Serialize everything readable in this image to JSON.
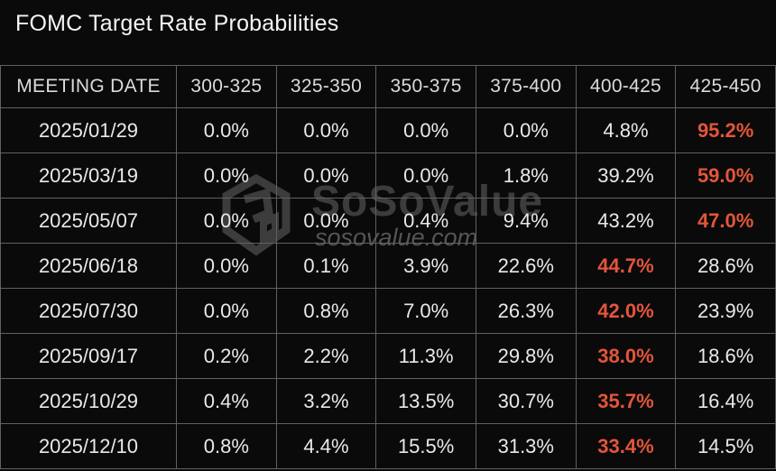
{
  "title": "FOMC Target Rate Probabilities",
  "watermark": {
    "brand": "SoSoValue",
    "site": "sosovalue.com",
    "logo_icon": "sosovalue-cube-logo"
  },
  "colors": {
    "background": "#0A0A0A",
    "grid_line": "#616161",
    "text_header": "#DBDBDB",
    "text_primary": "#E9E9E9",
    "accent_highlight": "#E3553A",
    "watermark": "#3C3C3C",
    "watermark_sub": "#555555"
  },
  "table": {
    "columns": [
      "MEETING DATE",
      "300-325",
      "325-350",
      "350-375",
      "375-400",
      "400-425",
      "425-450"
    ],
    "rows": [
      {
        "date": "2025/01/29",
        "values": [
          "0.0%",
          "0.0%",
          "0.0%",
          "0.0%",
          "4.8%",
          "95.2%"
        ],
        "highlight_index": 5
      },
      {
        "date": "2025/03/19",
        "values": [
          "0.0%",
          "0.0%",
          "0.0%",
          "1.8%",
          "39.2%",
          "59.0%"
        ],
        "highlight_index": 5
      },
      {
        "date": "2025/05/07",
        "values": [
          "0.0%",
          "0.0%",
          "0.4%",
          "9.4%",
          "43.2%",
          "47.0%"
        ],
        "highlight_index": 5
      },
      {
        "date": "2025/06/18",
        "values": [
          "0.0%",
          "0.1%",
          "3.9%",
          "22.6%",
          "44.7%",
          "28.6%"
        ],
        "highlight_index": 4
      },
      {
        "date": "2025/07/30",
        "values": [
          "0.0%",
          "0.8%",
          "7.0%",
          "26.3%",
          "42.0%",
          "23.9%"
        ],
        "highlight_index": 4
      },
      {
        "date": "2025/09/17",
        "values": [
          "0.2%",
          "2.2%",
          "11.3%",
          "29.8%",
          "38.0%",
          "18.6%"
        ],
        "highlight_index": 4
      },
      {
        "date": "2025/10/29",
        "values": [
          "0.4%",
          "3.2%",
          "13.5%",
          "30.7%",
          "35.7%",
          "16.4%"
        ],
        "highlight_index": 4
      },
      {
        "date": "2025/12/10",
        "values": [
          "0.8%",
          "4.4%",
          "15.5%",
          "31.3%",
          "33.4%",
          "14.5%"
        ],
        "highlight_index": 4
      }
    ]
  },
  "chart_data": {
    "type": "table",
    "title": "FOMC Target Rate Probabilities",
    "row_label": "MEETING DATE",
    "columns_rate_bps": [
      "300-325",
      "325-350",
      "350-375",
      "375-400",
      "400-425",
      "425-450"
    ],
    "meetings": [
      "2025/01/29",
      "2025/03/19",
      "2025/05/07",
      "2025/06/18",
      "2025/07/30",
      "2025/09/17",
      "2025/10/29",
      "2025/12/10"
    ],
    "probabilities_pct": [
      [
        0.0,
        0.0,
        0.0,
        0.0,
        4.8,
        95.2
      ],
      [
        0.0,
        0.0,
        0.0,
        1.8,
        39.2,
        59.0
      ],
      [
        0.0,
        0.0,
        0.4,
        9.4,
        43.2,
        47.0
      ],
      [
        0.0,
        0.1,
        3.9,
        22.6,
        44.7,
        28.6
      ],
      [
        0.0,
        0.8,
        7.0,
        26.3,
        42.0,
        23.9
      ],
      [
        0.2,
        2.2,
        11.3,
        29.8,
        38.0,
        18.6
      ],
      [
        0.4,
        3.2,
        13.5,
        30.7,
        35.7,
        16.4
      ],
      [
        0.8,
        4.4,
        15.5,
        31.3,
        33.4,
        14.5
      ]
    ],
    "highlighted_cells": [
      {
        "meeting": "2025/01/29",
        "column": "425-450",
        "value_pct": 95.2
      },
      {
        "meeting": "2025/03/19",
        "column": "425-450",
        "value_pct": 59.0
      },
      {
        "meeting": "2025/05/07",
        "column": "425-450",
        "value_pct": 47.0
      },
      {
        "meeting": "2025/06/18",
        "column": "400-425",
        "value_pct": 44.7
      },
      {
        "meeting": "2025/07/30",
        "column": "400-425",
        "value_pct": 42.0
      },
      {
        "meeting": "2025/09/17",
        "column": "400-425",
        "value_pct": 38.0
      },
      {
        "meeting": "2025/10/29",
        "column": "400-425",
        "value_pct": 35.7
      },
      {
        "meeting": "2025/12/10",
        "column": "400-425",
        "value_pct": 33.4
      }
    ],
    "legend": "none",
    "grid": true
  }
}
